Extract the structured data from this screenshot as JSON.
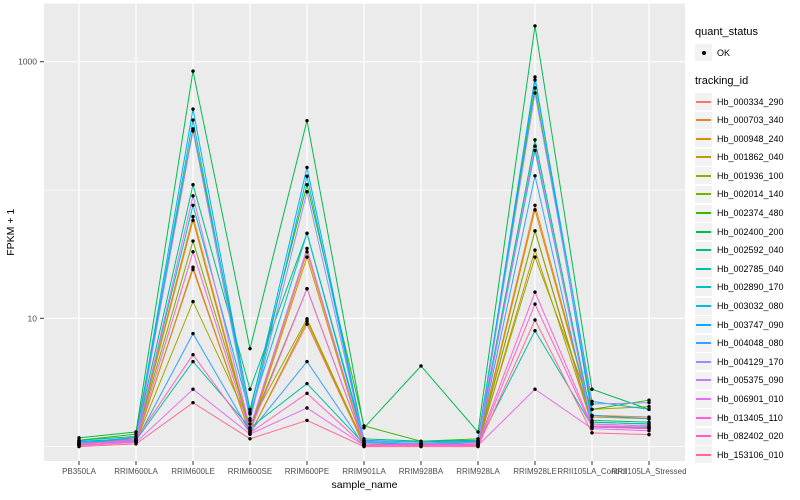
{
  "figure": {
    "background": "#ffffff",
    "panel_background": "#ebebeb",
    "gridline_color": "#ffffff",
    "tick_color": "#333333",
    "axis_text_color": "#4d4d4d",
    "title_text_color": "#000000",
    "point_color": "#000000"
  },
  "axes": {
    "x_title": "sample_name",
    "y_title": "FPKM + 1",
    "y_tick_labels": [
      "1000",
      "10"
    ]
  },
  "legend": {
    "quant_status_title": "quant_status",
    "quant_status_items": [
      {
        "label": "OK",
        "symbol": "point",
        "color": "#000000"
      }
    ],
    "tracking_id_title": "tracking_id"
  },
  "chart_data": {
    "type": "line",
    "title": "",
    "xlabel": "sample_name",
    "ylabel": "FPKM + 1",
    "y_scale": "log10",
    "y_major_ticks": [
      10,
      1000
    ],
    "y_gridlines": [
      1,
      10,
      100,
      1000
    ],
    "ylim": [
      0.8,
      2700
    ],
    "grid": true,
    "legend_position": "right",
    "marker": "black point (quant_status OK) on every value",
    "categories": [
      "PB350LA",
      "RRIM600LA",
      "RRIM600LE",
      "RRIM600SE",
      "RRIM600PE",
      "RRIM901LA",
      "RRIM928BA",
      "RRIM928LA",
      "RRIM928LE",
      "RRII105LA_Control",
      "RRII105LA_Stressed"
    ],
    "series": [
      {
        "name": "Hb_000334_290",
        "color": "#F8766D",
        "values": [
          1.05,
          1.1,
          24,
          1.25,
          9,
          1.02,
          1.05,
          1.03,
          48,
          1.45,
          1.4
        ]
      },
      {
        "name": "Hb_000703_340",
        "color": "#EA8331",
        "values": [
          1.03,
          1.15,
          62,
          1.35,
          33,
          1.05,
          1.03,
          1.05,
          76,
          1.75,
          1.7
        ]
      },
      {
        "name": "Hb_000948_240",
        "color": "#D89000",
        "values": [
          1.05,
          1.12,
          58,
          1.3,
          30,
          1.02,
          1.05,
          1.02,
          70,
          1.7,
          1.65
        ]
      },
      {
        "name": "Hb_001862_040",
        "color": "#C09B00",
        "values": [
          1.02,
          1.08,
          25,
          1.25,
          9.5,
          1.02,
          1.02,
          1.02,
          34,
          1.5,
          1.45
        ]
      },
      {
        "name": "Hb_001936_100",
        "color": "#A3A500",
        "values": [
          1.05,
          1.1,
          13.5,
          1.5,
          9.9,
          1.05,
          1.05,
          1.05,
          30,
          1.95,
          2.05
        ]
      },
      {
        "name": "Hb_002014_140",
        "color": "#7CAE00",
        "values": [
          1.08,
          1.15,
          40,
          1.4,
          17,
          1.05,
          1.02,
          1.05,
          48,
          1.55,
          1.5
        ]
      },
      {
        "name": "Hb_002374_480",
        "color": "#39B600",
        "values": [
          1.12,
          1.25,
          300,
          1.95,
          110,
          1.45,
          1.1,
          1.15,
          625,
          1.95,
          2.3
        ]
      },
      {
        "name": "Hb_002400_200",
        "color": "#00BB4E",
        "values": [
          1.17,
          1.3,
          845,
          5.8,
          347,
          1.4,
          4.25,
          1.3,
          1900,
          2.8,
          1.95
        ]
      },
      {
        "name": "Hb_002592_040",
        "color": "#00BF7D",
        "values": [
          1.12,
          1.2,
          110,
          2.8,
          46,
          1.15,
          1.1,
          1.12,
          246,
          1.6,
          1.55
        ]
      },
      {
        "name": "Hb_002785_040",
        "color": "#00C1A3",
        "values": [
          1.08,
          1.12,
          4.6,
          1.4,
          3.1,
          1.05,
          1.05,
          1.05,
          8.0,
          1.45,
          1.4
        ]
      },
      {
        "name": "Hb_002890_170",
        "color": "#00BFC4",
        "values": [
          1.1,
          1.15,
          76,
          1.8,
          46,
          1.08,
          1.05,
          1.08,
          203,
          1.55,
          1.5
        ]
      },
      {
        "name": "Hb_003032_080",
        "color": "#00BAE0",
        "values": [
          1.1,
          1.12,
          351,
          1.65,
          128,
          1.1,
          1.05,
          1.1,
          720,
          2.25,
          1.95
        ]
      },
      {
        "name": "Hb_003747_090",
        "color": "#00B0F6",
        "values": [
          1.08,
          1.18,
          427,
          1.85,
          150,
          1.12,
          1.08,
          1.1,
          760,
          1.75,
          1.65
        ]
      },
      {
        "name": "Hb_004048_080",
        "color": "#35A2FF",
        "values": [
          1.05,
          1.1,
          7.6,
          1.3,
          4.6,
          1.02,
          1.02,
          1.05,
          129,
          1.42,
          1.38
        ]
      },
      {
        "name": "Hb_004129_170",
        "color": "#9590FF",
        "values": [
          1.06,
          1.12,
          288,
          1.6,
          97,
          1.1,
          1.05,
          1.08,
          570,
          2.15,
          2.2
        ]
      },
      {
        "name": "Hb_005375_090",
        "color": "#C77CFF",
        "values": [
          1.05,
          1.1,
          90,
          1.4,
          35,
          1.05,
          1.02,
          1.05,
          220,
          1.5,
          1.45
        ]
      },
      {
        "name": "Hb_006901_010",
        "color": "#E76BF3",
        "values": [
          1.02,
          1.08,
          2.8,
          1.25,
          2.0,
          1.02,
          1.02,
          1.02,
          2.8,
          1.38,
          1.33
        ]
      },
      {
        "name": "Hb_013405_110",
        "color": "#FA62DB",
        "values": [
          1.05,
          1.1,
          33,
          1.32,
          17,
          1.05,
          1.02,
          1.05,
          16,
          1.45,
          1.42
        ]
      },
      {
        "name": "Hb_082402_020",
        "color": "#FF62BC",
        "values": [
          1.03,
          1.15,
          5.2,
          1.28,
          2.6,
          1.02,
          1.05,
          1.02,
          12.9,
          1.42,
          1.38
        ]
      },
      {
        "name": "Hb_153106_010",
        "color": "#FF6A98",
        "values": [
          1.0,
          1.05,
          2.2,
          1.15,
          1.6,
          1.0,
          1.0,
          1.0,
          9.7,
          1.28,
          1.24
        ]
      }
    ]
  }
}
